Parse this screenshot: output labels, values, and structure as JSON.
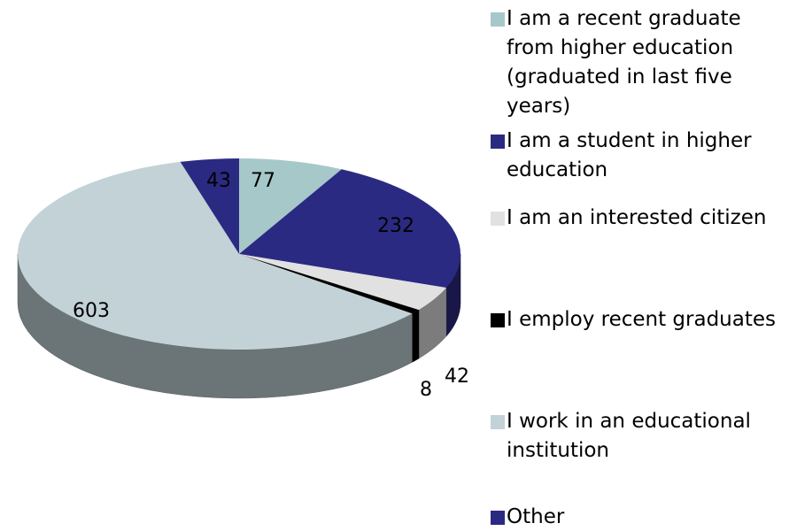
{
  "chart_data": {
    "type": "pie",
    "categories": [
      "I am a recent graduate from higher education (graduated in last five years)",
      "I am a student in higher education",
      "I am an interested citizen",
      "I employ recent graduates",
      "I work in an educational institution",
      "Other"
    ],
    "values": [
      77,
      232,
      42,
      8,
      603,
      43
    ],
    "colors": [
      "#a6c8c9",
      "#2b2a82",
      "#e1e1e1",
      "#000000",
      "#c2d2d6",
      "#2b2a82"
    ],
    "legend": "right"
  }
}
